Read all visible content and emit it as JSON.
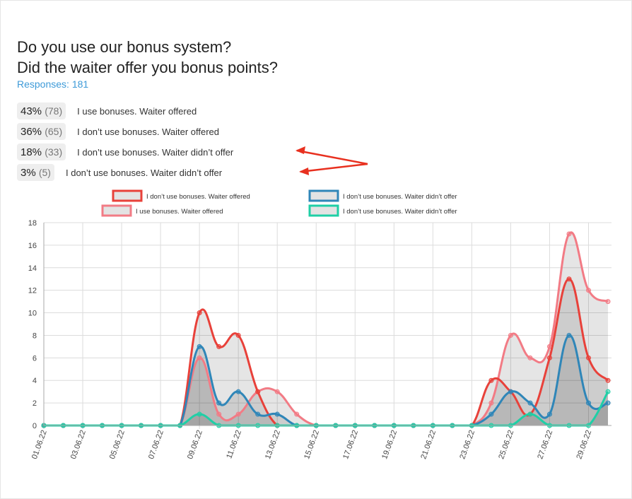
{
  "title_line1": "Do you use our bonus system?",
  "title_line2": "Did the waiter offer you bonus points?",
  "responses": "Responses: 181",
  "results": [
    {
      "pct": "43%",
      "count": "(78)",
      "label": "I use bonuses. Waiter offered"
    },
    {
      "pct": "36%",
      "count": "(65)",
      "label": "I don’t use bonuses. Waiter offered"
    },
    {
      "pct": "18%",
      "count": "(33)",
      "label": "I don’t use bonuses. Waiter didn’t offer"
    },
    {
      "pct": "3%",
      "count": "(5)",
      "label": "I don’t use bonuses. Waiter didn’t offer"
    }
  ],
  "chart_data": {
    "type": "area",
    "title": "",
    "xlabel": "",
    "ylabel": "",
    "ylim": [
      0,
      18
    ],
    "yticks": [
      0,
      2,
      4,
      6,
      8,
      10,
      12,
      14,
      16,
      18
    ],
    "grid": true,
    "legend_position": "top",
    "x": [
      "01.06.22",
      "02.06.22",
      "03.06.22",
      "04.06.22",
      "05.06.22",
      "06.06.22",
      "07.06.22",
      "08.06.22",
      "09.06.22",
      "10.06.22",
      "11.06.22",
      "12.06.22",
      "13.06.22",
      "14.06.22",
      "15.06.22",
      "16.06.22",
      "17.06.22",
      "18.06.22",
      "19.06.22",
      "20.06.22",
      "21.06.22",
      "22.06.22",
      "23.06.22",
      "24.06.22",
      "25.06.22",
      "26.06.22",
      "27.06.22",
      "28.06.22",
      "29.06.22",
      "30.06.22"
    ],
    "xtick_labels": [
      "01.06.22",
      "03.06.22",
      "05.06.22",
      "07.06.22",
      "09.06.22",
      "11.06.22",
      "13.06.22",
      "15.06.22",
      "17.06.22",
      "19.06.22",
      "21.06.22",
      "23.06.22",
      "25.06.22",
      "27.06.22",
      "29.06.22"
    ],
    "series": [
      {
        "name": "I use bonuses. Waiter offered",
        "color": "#f27b85",
        "values": [
          0,
          0,
          0,
          0,
          0,
          0,
          0,
          0,
          6,
          1,
          1,
          3,
          3,
          1,
          0,
          0,
          0,
          0,
          0,
          0,
          0,
          0,
          0,
          2,
          8,
          6,
          7,
          17,
          12,
          11
        ]
      },
      {
        "name": "I don’t use bonuses. Waiter offered",
        "color": "#e8413a",
        "values": [
          0,
          0,
          0,
          0,
          0,
          0,
          0,
          0,
          10,
          7,
          8,
          3,
          0,
          0,
          0,
          0,
          0,
          0,
          0,
          0,
          0,
          0,
          0,
          4,
          3,
          1,
          6,
          13,
          6,
          4
        ]
      },
      {
        "name": "I don’t use bonuses. Waiter didn’t offer",
        "color": "#2f86b8",
        "values": [
          0,
          0,
          0,
          0,
          0,
          0,
          0,
          0,
          7,
          2,
          3,
          1,
          1,
          0,
          0,
          0,
          0,
          0,
          0,
          0,
          0,
          0,
          0,
          1,
          3,
          2,
          1,
          8,
          2,
          2
        ]
      },
      {
        "name": "I don’t use bonuses. Waiter didn’t offer",
        "color": "#1fcfa6",
        "values": [
          0,
          0,
          0,
          0,
          0,
          0,
          0,
          0,
          1,
          0,
          0,
          0,
          0,
          0,
          0,
          0,
          0,
          0,
          0,
          0,
          0,
          0,
          0,
          0,
          0,
          1,
          0,
          0,
          0,
          3
        ]
      }
    ]
  }
}
